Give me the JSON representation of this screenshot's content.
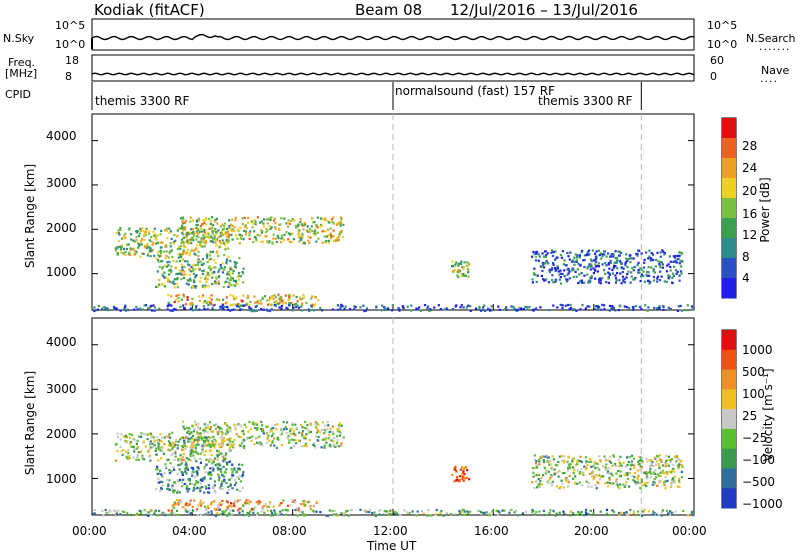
{
  "header": {
    "station": "Kodiak (fitACF)",
    "beam": "Beam 08",
    "date_range": "12/Jul/2016 – 13/Jul/2016"
  },
  "top_panels": {
    "nsky_label": "N.Sky",
    "nsky_ticks": [
      "10^5",
      "10^0"
    ],
    "nsearch_label": "N.Search",
    "nsearch_ticks": [
      "10^5",
      "10^0"
    ],
    "freq_label": "Freq.",
    "freq_unit": "[MHz]",
    "freq_ticks": [
      "18",
      "8"
    ],
    "nave_label": "Nave",
    "nave_ticks": [
      "60",
      "0"
    ],
    "cpid_label": "CPID",
    "cpid_segments": [
      "themis 3300 RF",
      "normalsound (fast) 157 RF",
      "themis 3300 RF"
    ]
  },
  "chart_data": [
    {
      "type": "heatmap",
      "name": "power-panel",
      "ylabel": "Slant Range [km]",
      "ylim": [
        180,
        4600
      ],
      "yticks": [
        "4000",
        "3000",
        "2000",
        "1000"
      ],
      "xticks": [
        "00:00",
        "04:00",
        "08:00",
        "12:00",
        "16:00",
        "20:00",
        "00:00"
      ],
      "colorbar_label": "Power [dB]",
      "colorbar_ticks": [
        "28",
        "24",
        "20",
        "16",
        "12",
        "8",
        "4"
      ],
      "colors": [
        "#1e1ee6",
        "#2850c8",
        "#2e8b8b",
        "#3aa050",
        "#7ac040",
        "#f0d020",
        "#f0a020",
        "#f06020",
        "#e01010"
      ],
      "scatter_regions": [
        {
          "t0": 0.9,
          "t1": 5.5,
          "r0": 1400,
          "r1": 2050,
          "level": 0.5
        },
        {
          "t0": 3.5,
          "t1": 10.0,
          "r0": 1700,
          "r1": 2300,
          "level": 0.55
        },
        {
          "t0": 2.5,
          "t1": 6.0,
          "r0": 700,
          "r1": 1400,
          "level": 0.45
        },
        {
          "t0": 3.0,
          "t1": 9.0,
          "r0": 300,
          "r1": 550,
          "level": 0.65
        },
        {
          "t0": 14.3,
          "t1": 15.0,
          "r0": 950,
          "r1": 1300,
          "level": 0.5
        },
        {
          "t0": 17.5,
          "t1": 23.5,
          "r0": 800,
          "r1": 1550,
          "level": 0.2
        },
        {
          "t0": 0.0,
          "t1": 24.0,
          "r0": 180,
          "r1": 320,
          "level": 0.15
        }
      ]
    },
    {
      "type": "heatmap",
      "name": "velocity-panel",
      "ylabel": "Slant Range [km]",
      "ylim": [
        180,
        4600
      ],
      "yticks": [
        "4000",
        "3000",
        "2000",
        "1000"
      ],
      "xticks": [
        "00:00",
        "04:00",
        "08:00",
        "12:00",
        "16:00",
        "20:00",
        "00:00"
      ],
      "xlabel": "Time UT",
      "colorbar_label": "Velocity [m s⁻¹]",
      "colorbar_ticks": [
        "1000",
        "500",
        "100",
        "25",
        "−25",
        "−100",
        "−500",
        "−1000"
      ],
      "colors": [
        "#1e3cc8",
        "#2e6e9e",
        "#3a9a50",
        "#5ac030",
        "#c8c8c8",
        "#f0c020",
        "#f09020",
        "#f05010",
        "#e01010"
      ],
      "scatter_regions": [
        {
          "t0": 0.9,
          "t1": 5.5,
          "r0": 1400,
          "r1": 2050,
          "level": 0.45
        },
        {
          "t0": 3.5,
          "t1": 10.0,
          "r0": 1700,
          "r1": 2300,
          "level": 0.45
        },
        {
          "t0": 2.5,
          "t1": 6.0,
          "r0": 700,
          "r1": 1400,
          "level": 0.3
        },
        {
          "t0": 3.0,
          "t1": 9.0,
          "r0": 300,
          "r1": 550,
          "level": 0.65
        },
        {
          "t0": 14.3,
          "t1": 15.0,
          "r0": 950,
          "r1": 1300,
          "level": 0.85
        },
        {
          "t0": 17.5,
          "t1": 23.5,
          "r0": 800,
          "r1": 1550,
          "level": 0.45
        },
        {
          "t0": 0.0,
          "t1": 24.0,
          "r0": 180,
          "r1": 320,
          "level": 0.35
        }
      ]
    }
  ]
}
